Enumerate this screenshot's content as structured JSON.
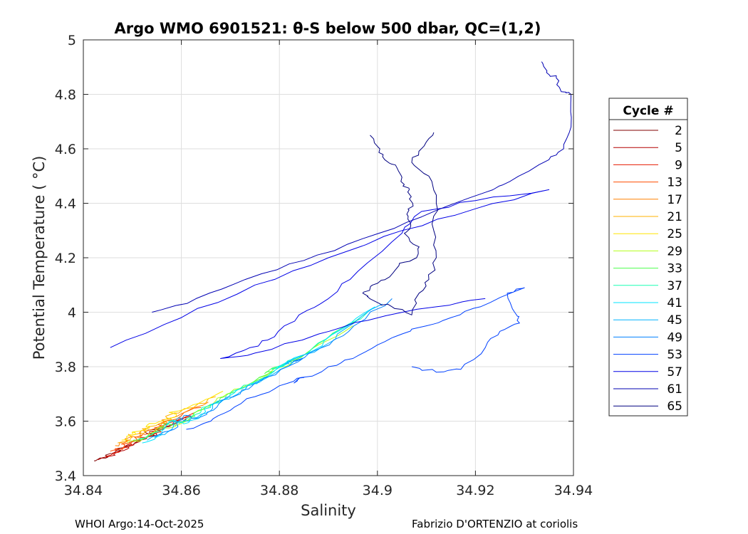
{
  "chart_data": {
    "type": "line",
    "title": "Argo WMO 6901521: θ-S below 500 dbar,  QC=(1,2)",
    "xlabel": "Salinity",
    "ylabel": "Potential Temperature ( °C)",
    "xlim": [
      34.84,
      34.94
    ],
    "ylim": [
      3.4,
      5.0
    ],
    "xticks": [
      34.84,
      34.86,
      34.88,
      34.9,
      34.92,
      34.94
    ],
    "xtick_labels": [
      "34.84",
      "34.86",
      "34.88",
      "34.9",
      "34.92",
      "34.94"
    ],
    "yticks": [
      3.4,
      3.6,
      3.8,
      4.0,
      4.2,
      4.4,
      4.6,
      4.8,
      5.0
    ],
    "ytick_labels": [
      "3.4",
      "3.6",
      "3.8",
      "4",
      "4.2",
      "4.4",
      "4.6",
      "4.8",
      "5"
    ],
    "grid": true,
    "legend": {
      "title": "Cycle #",
      "placement": "outside-right",
      "entries": [
        {
          "label": "2",
          "color": "#800000"
        },
        {
          "label": "5",
          "color": "#b30000"
        },
        {
          "label": "9",
          "color": "#e61a00"
        },
        {
          "label": "13",
          "color": "#ff4d00"
        },
        {
          "label": "17",
          "color": "#ff8000"
        },
        {
          "label": "21",
          "color": "#ffb300"
        },
        {
          "label": "25",
          "color": "#ffe600"
        },
        {
          "label": "29",
          "color": "#b3ff1a"
        },
        {
          "label": "33",
          "color": "#4dff4d"
        },
        {
          "label": "37",
          "color": "#1affb3"
        },
        {
          "label": "41",
          "color": "#00e6ff"
        },
        {
          "label": "45",
          "color": "#00b3ff"
        },
        {
          "label": "49",
          "color": "#0080ff"
        },
        {
          "label": "53",
          "color": "#0040ff"
        },
        {
          "label": "57",
          "color": "#0000e6"
        },
        {
          "label": "61",
          "color": "#0000b3"
        },
        {
          "label": "65",
          "color": "#000080"
        }
      ]
    },
    "series": [
      {
        "name": "2",
        "color": "#800000",
        "points": [
          [
            34.8422,
            3.455
          ],
          [
            34.845,
            3.468
          ],
          [
            34.8445,
            3.475
          ],
          [
            34.8475,
            3.49
          ],
          [
            34.847,
            3.5
          ],
          [
            34.8505,
            3.52
          ],
          [
            34.8545,
            3.548
          ],
          [
            34.8525,
            3.56
          ],
          [
            34.8575,
            3.58
          ],
          [
            34.861,
            3.61
          ]
        ]
      },
      {
        "name": "5",
        "color": "#b30000",
        "points": [
          [
            34.843,
            3.458
          ],
          [
            34.8465,
            3.475
          ],
          [
            34.846,
            3.483
          ],
          [
            34.849,
            3.498
          ],
          [
            34.8485,
            3.508
          ],
          [
            34.8515,
            3.525
          ],
          [
            34.855,
            3.55
          ],
          [
            34.8535,
            3.562
          ],
          [
            34.858,
            3.585
          ],
          [
            34.862,
            3.62
          ]
        ]
      },
      {
        "name": "9",
        "color": "#e61a00",
        "points": [
          [
            34.8445,
            3.47
          ],
          [
            34.8475,
            3.488
          ],
          [
            34.8468,
            3.498
          ],
          [
            34.85,
            3.512
          ],
          [
            34.8495,
            3.522
          ],
          [
            34.8525,
            3.54
          ],
          [
            34.8558,
            3.56
          ],
          [
            34.8545,
            3.575
          ],
          [
            34.859,
            3.6
          ],
          [
            34.8625,
            3.63
          ]
        ]
      },
      {
        "name": "13",
        "color": "#ff4d00",
        "points": [
          [
            34.8455,
            3.49
          ],
          [
            34.8482,
            3.505
          ],
          [
            34.8478,
            3.515
          ],
          [
            34.851,
            3.53
          ],
          [
            34.8505,
            3.54
          ],
          [
            34.8535,
            3.555
          ],
          [
            34.8565,
            3.575
          ],
          [
            34.8552,
            3.588
          ],
          [
            34.86,
            3.62
          ],
          [
            34.864,
            3.65
          ]
        ]
      },
      {
        "name": "17",
        "color": "#ff8000",
        "points": [
          [
            34.8465,
            3.51
          ],
          [
            34.849,
            3.525
          ],
          [
            34.8485,
            3.535
          ],
          [
            34.852,
            3.548
          ],
          [
            34.8515,
            3.558
          ],
          [
            34.8545,
            3.572
          ],
          [
            34.8572,
            3.592
          ],
          [
            34.856,
            3.604
          ],
          [
            34.861,
            3.635
          ],
          [
            34.8655,
            3.67
          ]
        ]
      },
      {
        "name": "21",
        "color": "#ffb300",
        "points": [
          [
            34.847,
            3.52
          ],
          [
            34.8498,
            3.54
          ],
          [
            34.8492,
            3.55
          ],
          [
            34.8528,
            3.562
          ],
          [
            34.852,
            3.572
          ],
          [
            34.8552,
            3.588
          ],
          [
            34.858,
            3.605
          ],
          [
            34.8568,
            3.618
          ],
          [
            34.8625,
            3.65
          ],
          [
            34.867,
            3.69
          ]
        ]
      },
      {
        "name": "25",
        "color": "#ffe600",
        "points": [
          [
            34.8478,
            3.53
          ],
          [
            34.8505,
            3.55
          ],
          [
            34.85,
            3.56
          ],
          [
            34.8535,
            3.575
          ],
          [
            34.853,
            3.585
          ],
          [
            34.856,
            3.6
          ],
          [
            34.859,
            3.62
          ],
          [
            34.8575,
            3.632
          ],
          [
            34.8635,
            3.665
          ],
          [
            34.8685,
            3.71
          ]
        ]
      },
      {
        "name": "29",
        "color": "#b3ff1a",
        "points": [
          [
            34.849,
            3.52
          ],
          [
            34.853,
            3.54
          ],
          [
            34.856,
            3.58
          ],
          [
            34.8575,
            3.575
          ],
          [
            34.861,
            3.6
          ],
          [
            34.8625,
            3.63
          ],
          [
            34.8655,
            3.65
          ],
          [
            34.8685,
            3.69
          ],
          [
            34.872,
            3.72
          ],
          [
            34.878,
            3.77
          ],
          [
            34.876,
            3.76
          ],
          [
            34.883,
            3.82
          ],
          [
            34.888,
            3.88
          ],
          [
            34.895,
            3.95
          ]
        ]
      },
      {
        "name": "33",
        "color": "#4dff4d",
        "points": [
          [
            34.8502,
            3.53
          ],
          [
            34.854,
            3.55
          ],
          [
            34.8565,
            3.59
          ],
          [
            34.8588,
            3.585
          ],
          [
            34.862,
            3.615
          ],
          [
            34.8635,
            3.64
          ],
          [
            34.8668,
            3.665
          ],
          [
            34.8695,
            3.7
          ],
          [
            34.8735,
            3.73
          ],
          [
            34.879,
            3.785
          ],
          [
            34.877,
            3.775
          ],
          [
            34.8845,
            3.835
          ],
          [
            34.8895,
            3.9
          ],
          [
            34.8965,
            3.98
          ]
        ]
      },
      {
        "name": "37",
        "color": "#1affb3",
        "points": [
          [
            34.8512,
            3.535
          ],
          [
            34.8552,
            3.56
          ],
          [
            34.8575,
            3.6
          ],
          [
            34.8598,
            3.595
          ],
          [
            34.863,
            3.625
          ],
          [
            34.8648,
            3.652
          ],
          [
            34.868,
            3.675
          ],
          [
            34.8708,
            3.712
          ],
          [
            34.8748,
            3.742
          ],
          [
            34.8802,
            3.8
          ],
          [
            34.8785,
            3.79
          ],
          [
            34.8858,
            3.85
          ],
          [
            34.8908,
            3.92
          ],
          [
            34.898,
            4.0
          ]
        ]
      },
      {
        "name": "41",
        "color": "#00e6ff",
        "points": [
          [
            34.852,
            3.52
          ],
          [
            34.856,
            3.55
          ],
          [
            34.858,
            3.6
          ],
          [
            34.8605,
            3.59
          ],
          [
            34.864,
            3.62
          ],
          [
            34.866,
            3.66
          ],
          [
            34.8692,
            3.68
          ],
          [
            34.872,
            3.72
          ],
          [
            34.876,
            3.75
          ],
          [
            34.8815,
            3.81
          ],
          [
            34.8798,
            3.8
          ],
          [
            34.887,
            3.86
          ],
          [
            34.892,
            3.93
          ],
          [
            34.8995,
            4.02
          ]
        ]
      },
      {
        "name": "45",
        "color": "#00b3ff",
        "points": [
          [
            34.853,
            3.53
          ],
          [
            34.8572,
            3.56
          ],
          [
            34.8592,
            3.61
          ],
          [
            34.8615,
            3.6
          ],
          [
            34.8652,
            3.63
          ],
          [
            34.8672,
            3.67
          ],
          [
            34.8705,
            3.69
          ],
          [
            34.8735,
            3.73
          ],
          [
            34.8775,
            3.76
          ],
          [
            34.883,
            3.82
          ],
          [
            34.8812,
            3.81
          ],
          [
            34.8885,
            3.87
          ],
          [
            34.8935,
            3.94
          ],
          [
            34.901,
            4.03
          ]
        ]
      },
      {
        "name": "49",
        "color": "#0080ff",
        "points": [
          [
            34.8545,
            3.54
          ],
          [
            34.8585,
            3.57
          ],
          [
            34.8605,
            3.62
          ],
          [
            34.863,
            3.61
          ],
          [
            34.8665,
            3.64
          ],
          [
            34.8688,
            3.68
          ],
          [
            34.872,
            3.7
          ],
          [
            34.875,
            3.74
          ],
          [
            34.8792,
            3.77
          ],
          [
            34.8848,
            3.83
          ],
          [
            34.8828,
            3.82
          ],
          [
            34.8902,
            3.88
          ],
          [
            34.8952,
            3.95
          ],
          [
            34.903,
            4.05
          ]
        ]
      },
      {
        "name": "53",
        "color": "#0040ff",
        "points": [
          [
            34.861,
            3.57
          ],
          [
            34.866,
            3.6
          ],
          [
            34.87,
            3.64
          ],
          [
            34.875,
            3.69
          ],
          [
            34.88,
            3.73
          ],
          [
            34.885,
            3.76
          ],
          [
            34.883,
            3.74
          ],
          [
            34.89,
            3.8
          ],
          [
            34.895,
            3.83
          ],
          [
            34.9,
            3.88
          ],
          [
            34.905,
            3.92
          ],
          [
            34.91,
            3.95
          ],
          [
            34.915,
            3.98
          ],
          [
            34.921,
            4.02
          ],
          [
            34.93,
            4.09
          ],
          [
            34.9265,
            4.07
          ],
          [
            34.928,
            4.0
          ],
          [
            34.929,
            3.96
          ],
          [
            34.925,
            3.93
          ],
          [
            34.922,
            3.87
          ],
          [
            34.917,
            3.79
          ],
          [
            34.912,
            3.78
          ],
          [
            34.907,
            3.8
          ]
        ]
      },
      {
        "name": "57",
        "color": "#0000e6",
        "points": [
          [
            34.8455,
            3.87
          ],
          [
            34.86,
            3.98
          ],
          [
            34.875,
            4.1
          ],
          [
            34.89,
            4.2
          ],
          [
            34.905,
            4.3
          ],
          [
            34.92,
            4.38
          ],
          [
            34.935,
            4.45
          ],
          [
            34.92,
            4.41
          ],
          [
            34.909,
            4.37
          ],
          [
            34.905,
            4.29
          ],
          [
            34.896,
            4.15
          ],
          [
            34.89,
            4.05
          ],
          [
            34.884,
            3.99
          ],
          [
            34.879,
            3.91
          ],
          [
            34.874,
            3.87
          ],
          [
            34.868,
            3.83
          ],
          [
            34.875,
            3.85
          ],
          [
            34.888,
            3.92
          ],
          [
            34.898,
            3.97
          ],
          [
            34.912,
            4.02
          ],
          [
            34.922,
            4.05
          ]
        ]
      },
      {
        "name": "61",
        "color": "#0000b3",
        "points": [
          [
            34.854,
            4.0
          ],
          [
            34.863,
            4.05
          ],
          [
            34.873,
            4.12
          ],
          [
            34.885,
            4.19
          ],
          [
            34.897,
            4.27
          ],
          [
            34.909,
            4.35
          ],
          [
            34.922,
            4.44
          ],
          [
            34.927,
            4.48
          ],
          [
            34.935,
            4.56
          ],
          [
            34.938,
            4.6
          ],
          [
            34.9395,
            4.68
          ],
          [
            34.9395,
            4.8
          ],
          [
            34.9375,
            4.81
          ],
          [
            34.9365,
            4.86
          ],
          [
            34.9345,
            4.88
          ],
          [
            34.9335,
            4.92
          ]
        ]
      },
      {
        "name": "65",
        "color": "#000080",
        "points": [
          [
            34.8985,
            4.65
          ],
          [
            34.9005,
            4.6
          ],
          [
            34.9015,
            4.56
          ],
          [
            34.904,
            4.53
          ],
          [
            34.9048,
            4.48
          ],
          [
            34.9065,
            4.45
          ],
          [
            34.9072,
            4.4
          ],
          [
            34.906,
            4.36
          ],
          [
            34.9068,
            4.32
          ],
          [
            34.9055,
            4.29
          ],
          [
            34.9085,
            4.24
          ],
          [
            34.908,
            4.2
          ],
          [
            34.9045,
            4.18
          ],
          [
            34.9025,
            4.13
          ],
          [
            34.899,
            4.1
          ],
          [
            34.897,
            4.07
          ],
          [
            34.8995,
            4.04
          ],
          [
            34.903,
            4.02
          ],
          [
            34.907,
            3.99
          ],
          [
            34.9085,
            4.07
          ],
          [
            34.9105,
            4.12
          ],
          [
            34.912,
            4.2
          ],
          [
            34.9115,
            4.3
          ],
          [
            34.912,
            4.4
          ],
          [
            34.9105,
            4.5
          ],
          [
            34.907,
            4.55
          ],
          [
            34.9095,
            4.61
          ],
          [
            34.9115,
            4.66
          ]
        ]
      }
    ]
  },
  "footer": {
    "left": "WHOI Argo:14-Oct-2025",
    "right": "Fabrizio D'ORTENZIO at coriolis"
  }
}
